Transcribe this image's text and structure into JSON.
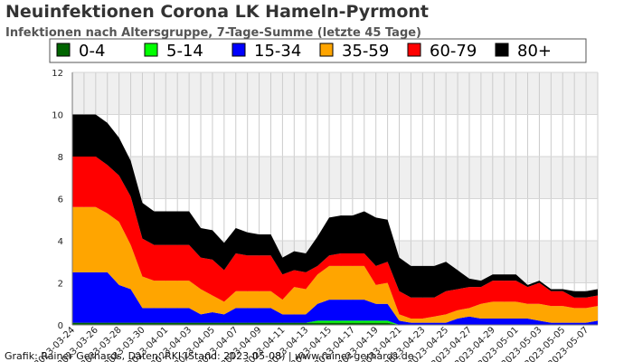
{
  "title": "Neuinfektionen Corona LK Hameln-Pyrmont",
  "subtitle": "Infektionen nach Altersgruppe, 7-Tage-Summe (letzte 45 Tage)",
  "footer": "Grafik: Rainer Gerhards, Daten: RKI (Stand: 2023-05-08) | www.rainer-gerhards.de",
  "chart_data": {
    "type": "area",
    "stacked": true,
    "title": "Neuinfektionen Corona LK Hameln-Pyrmont",
    "subtitle": "Infektionen nach Altersgruppe, 7-Tage-Summe (letzte 45 Tage)",
    "x": [
      "2023-03-24",
      "2023-03-25",
      "2023-03-26",
      "2023-03-27",
      "2023-03-28",
      "2023-03-29",
      "2023-03-30",
      "2023-03-31",
      "2023-04-01",
      "2023-04-02",
      "2023-04-03",
      "2023-04-04",
      "2023-04-05",
      "2023-04-06",
      "2023-04-07",
      "2023-04-08",
      "2023-04-09",
      "2023-04-10",
      "2023-04-11",
      "2023-04-12",
      "2023-04-13",
      "2023-04-14",
      "2023-04-15",
      "2023-04-16",
      "2023-04-17",
      "2023-04-18",
      "2023-04-19",
      "2023-04-20",
      "2023-04-21",
      "2023-04-22",
      "2023-04-23",
      "2023-04-24",
      "2023-04-25",
      "2023-04-26",
      "2023-04-27",
      "2023-04-28",
      "2023-04-29",
      "2023-04-30",
      "2023-05-01",
      "2023-05-02",
      "2023-05-03",
      "2023-05-04",
      "2023-05-05",
      "2023-05-06",
      "2023-05-07",
      "2023-05-08"
    ],
    "x_tick_labels": [
      "2023-03-24",
      "2023-03-26",
      "2023-03-28",
      "2023-03-30",
      "2023-04-01",
      "2023-04-03",
      "2023-04-05",
      "2023-04-07",
      "2023-04-09",
      "2023-04-11",
      "2023-04-13",
      "2023-04-15",
      "2023-04-17",
      "2023-04-19",
      "2023-04-21",
      "2023-04-23",
      "2023-04-25",
      "2023-04-27",
      "2023-04-29",
      "2023-05-01",
      "2023-05-03",
      "2023-05-05",
      "2023-05-07"
    ],
    "ylim": [
      0,
      12
    ],
    "y_ticks": [
      0,
      2,
      4,
      6,
      8,
      10,
      12
    ],
    "grid": true,
    "legend_position": "top",
    "series": [
      {
        "name": "0-4",
        "color": "#006400",
        "values": [
          0.1,
          0.1,
          0.1,
          0.1,
          0.1,
          0.1,
          0.1,
          0.1,
          0.1,
          0.1,
          0.1,
          0.1,
          0.1,
          0.1,
          0.1,
          0.1,
          0.1,
          0.1,
          0.1,
          0.1,
          0.1,
          0.1,
          0.1,
          0.1,
          0.1,
          0.1,
          0.1,
          0.1,
          0,
          0,
          0,
          0,
          0,
          0,
          0,
          0,
          0,
          0,
          0,
          0,
          0,
          0,
          0,
          0,
          0,
          0
        ]
      },
      {
        "name": "5-14",
        "color": "#00ff00",
        "values": [
          0,
          0,
          0,
          0,
          0,
          0,
          0,
          0,
          0,
          0,
          0,
          0,
          0,
          0,
          0,
          0,
          0,
          0,
          0,
          0,
          0,
          0.1,
          0.1,
          0.1,
          0.1,
          0.1,
          0.1,
          0.1,
          0,
          0,
          0,
          0,
          0,
          0,
          0,
          0,
          0,
          0,
          0,
          0,
          0,
          0,
          0,
          0,
          0,
          0
        ]
      },
      {
        "name": "15-34",
        "color": "#0000ff",
        "values": [
          2.4,
          2.4,
          2.4,
          2.4,
          1.8,
          1.6,
          0.7,
          0.7,
          0.7,
          0.7,
          0.7,
          0.4,
          0.5,
          0.4,
          0.7,
          0.7,
          0.7,
          0.7,
          0.4,
          0.4,
          0.4,
          0.8,
          1.0,
          1.0,
          1.0,
          1.0,
          0.8,
          0.8,
          0.2,
          0.1,
          0.1,
          0.1,
          0.1,
          0.3,
          0.4,
          0.3,
          0.3,
          0.3,
          0.3,
          0.3,
          0.2,
          0.1,
          0.1,
          0.1,
          0.1,
          0.2
        ]
      },
      {
        "name": "35-59",
        "color": "#ffa500",
        "values": [
          3.1,
          3.1,
          3.1,
          2.8,
          3.0,
          2.1,
          1.5,
          1.3,
          1.3,
          1.3,
          1.3,
          1.2,
          0.8,
          0.6,
          0.8,
          0.8,
          0.8,
          0.8,
          0.7,
          1.3,
          1.2,
          1.4,
          1.6,
          1.6,
          1.6,
          1.6,
          0.9,
          1.0,
          0.3,
          0.2,
          0.2,
          0.3,
          0.4,
          0.4,
          0.4,
          0.7,
          0.8,
          0.8,
          0.8,
          0.7,
          0.8,
          0.8,
          0.8,
          0.7,
          0.7,
          0.7
        ]
      },
      {
        "name": "60-79",
        "color": "#ff0000",
        "values": [
          2.4,
          2.4,
          2.4,
          2.3,
          2.2,
          2.3,
          1.8,
          1.7,
          1.7,
          1.7,
          1.7,
          1.5,
          1.7,
          1.5,
          1.8,
          1.7,
          1.7,
          1.7,
          1.2,
          0.8,
          0.8,
          0.4,
          0.5,
          0.6,
          0.6,
          0.6,
          0.9,
          1.0,
          1.1,
          1.0,
          1.0,
          0.9,
          1.1,
          1.0,
          1.0,
          0.8,
          1.0,
          1.0,
          1.0,
          0.8,
          1.0,
          0.7,
          0.7,
          0.5,
          0.5,
          0.5
        ]
      },
      {
        "name": "80+",
        "color": "#000000",
        "values": [
          2.0,
          2.0,
          2.0,
          2.0,
          1.8,
          1.7,
          1.7,
          1.6,
          1.6,
          1.6,
          1.6,
          1.4,
          1.4,
          1.3,
          1.2,
          1.1,
          1.0,
          1.0,
          0.8,
          0.9,
          0.9,
          1.4,
          1.8,
          1.8,
          1.8,
          2.0,
          2.3,
          2.0,
          1.6,
          1.5,
          1.5,
          1.5,
          1.4,
          0.9,
          0.4,
          0.3,
          0.3,
          0.3,
          0.3,
          0.1,
          0.1,
          0.1,
          0.1,
          0.3,
          0.3,
          0.3
        ]
      }
    ]
  }
}
